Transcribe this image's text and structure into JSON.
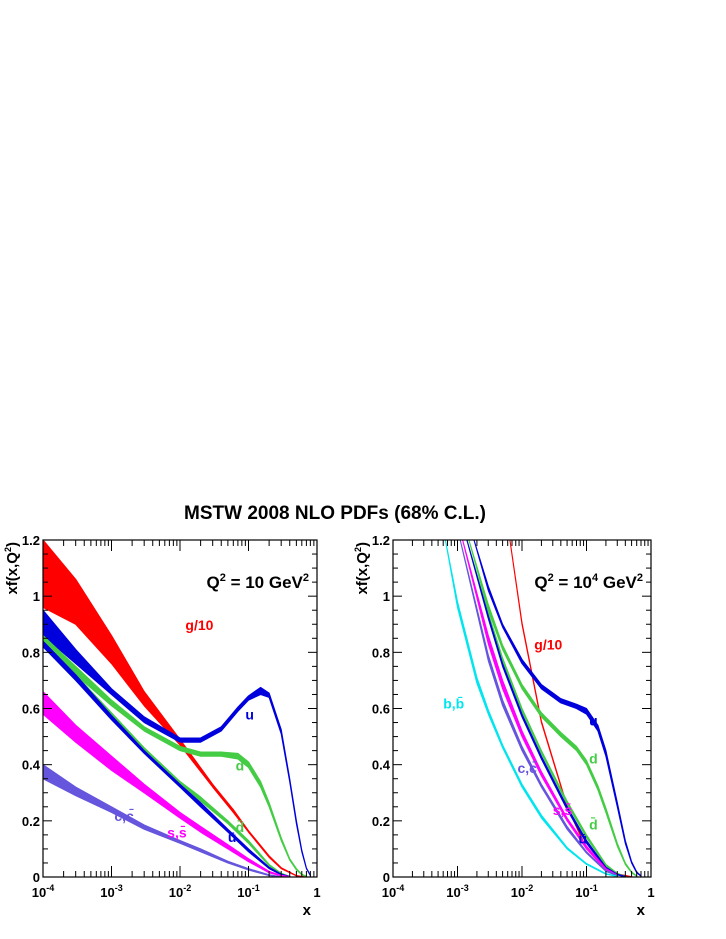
{
  "figure_title": "MSTW 2008 NLO PDFs (68% C.L.)",
  "chart_data": [
    {
      "type": "line",
      "panel": "left",
      "q2_label": "Q",
      "q2_exp": "2",
      "q2_value": " = 10 GeV",
      "q2_unit_exp": "2",
      "xlabel": "x",
      "ylabel": "xf(x,Q",
      "ylabel_exp": "2",
      "ylabel_close": ")",
      "xscale": "log",
      "xlim": [
        0.0001,
        1
      ],
      "ylim": [
        0,
        1.2
      ],
      "y_ticks": [
        "0",
        "0.2",
        "0.4",
        "0.6",
        "0.8",
        "1",
        "1.2"
      ],
      "x_ticks": [
        {
          "base": "10",
          "exp": "-4"
        },
        {
          "base": "10",
          "exp": "-3"
        },
        {
          "base": "10",
          "exp": "-2"
        },
        {
          "base": "10",
          "exp": "-1"
        },
        {
          "base": "1",
          "exp": ""
        }
      ],
      "series": [
        {
          "key": "g",
          "name": "g/10",
          "color": "#ff0000",
          "x": [
            0.0001,
            0.0003,
            0.001,
            0.003,
            0.01,
            0.03,
            0.06,
            0.1,
            0.2,
            0.3,
            0.5,
            0.7
          ],
          "lo": [
            0.96,
            0.9,
            0.76,
            0.61,
            0.47,
            0.32,
            0.23,
            0.16,
            0.07,
            0.03,
            0.004,
            0.0
          ],
          "hi": [
            1.2,
            1.06,
            0.86,
            0.66,
            0.49,
            0.33,
            0.24,
            0.165,
            0.075,
            0.033,
            0.005,
            0.0
          ]
        },
        {
          "key": "u",
          "name": "u",
          "color": "#0000dd",
          "x": [
            0.0001,
            0.0003,
            0.001,
            0.003,
            0.01,
            0.02,
            0.04,
            0.07,
            0.1,
            0.15,
            0.2,
            0.3,
            0.4,
            0.5,
            0.6,
            0.7,
            0.8
          ],
          "lo": [
            0.86,
            0.76,
            0.65,
            0.55,
            0.48,
            0.48,
            0.52,
            0.59,
            0.63,
            0.65,
            0.64,
            0.51,
            0.34,
            0.19,
            0.09,
            0.03,
            0.005
          ],
          "hi": [
            0.95,
            0.81,
            0.67,
            0.57,
            0.495,
            0.495,
            0.535,
            0.605,
            0.645,
            0.675,
            0.655,
            0.525,
            0.35,
            0.2,
            0.095,
            0.032,
            0.006
          ]
        },
        {
          "key": "d",
          "name": "d",
          "color": "#44cc44",
          "x": [
            0.0001,
            0.0003,
            0.001,
            0.003,
            0.01,
            0.02,
            0.04,
            0.07,
            0.1,
            0.15,
            0.2,
            0.3,
            0.4,
            0.5,
            0.6,
            0.7
          ],
          "lo": [
            0.82,
            0.72,
            0.61,
            0.52,
            0.45,
            0.43,
            0.43,
            0.42,
            0.39,
            0.32,
            0.25,
            0.13,
            0.06,
            0.025,
            0.008,
            0.002
          ],
          "hi": [
            0.86,
            0.75,
            0.63,
            0.535,
            0.465,
            0.445,
            0.445,
            0.44,
            0.41,
            0.34,
            0.265,
            0.14,
            0.065,
            0.03,
            0.01,
            0.003
          ]
        },
        {
          "key": "dbar",
          "name": "d̄",
          "color": "#44cc44",
          "x": [
            0.0001,
            0.0003,
            0.001,
            0.003,
            0.01,
            0.02,
            0.05,
            0.1,
            0.2,
            0.3,
            0.4
          ],
          "lo": [
            0.82,
            0.7,
            0.57,
            0.45,
            0.33,
            0.27,
            0.19,
            0.12,
            0.04,
            0.01,
            0.0
          ],
          "hi": [
            0.84,
            0.72,
            0.585,
            0.46,
            0.34,
            0.285,
            0.2,
            0.13,
            0.045,
            0.013,
            0.002
          ]
        },
        {
          "key": "ubar",
          "name": "ū",
          "color": "#0000dd",
          "x": [
            0.0001,
            0.0003,
            0.001,
            0.003,
            0.01,
            0.02,
            0.05,
            0.1,
            0.2,
            0.3,
            0.4
          ],
          "lo": [
            0.82,
            0.7,
            0.56,
            0.44,
            0.32,
            0.25,
            0.16,
            0.09,
            0.03,
            0.008,
            0.0
          ],
          "hi": [
            0.84,
            0.72,
            0.575,
            0.45,
            0.33,
            0.265,
            0.17,
            0.1,
            0.035,
            0.01,
            0.002
          ]
        },
        {
          "key": "s",
          "name": "s,s̄",
          "color": "#ff00ff",
          "x": [
            0.0001,
            0.0003,
            0.001,
            0.003,
            0.01,
            0.02,
            0.05,
            0.1,
            0.2,
            0.3,
            0.4
          ],
          "lo": [
            0.58,
            0.48,
            0.38,
            0.3,
            0.21,
            0.16,
            0.1,
            0.055,
            0.015,
            0.004,
            0.0
          ],
          "hi": [
            0.66,
            0.54,
            0.43,
            0.33,
            0.23,
            0.18,
            0.115,
            0.065,
            0.02,
            0.006,
            0.001
          ]
        },
        {
          "key": "c",
          "name": "c,c̄",
          "color": "#6655dd",
          "x": [
            0.0001,
            0.0003,
            0.001,
            0.003,
            0.01,
            0.02,
            0.05,
            0.1,
            0.2,
            0.3
          ],
          "lo": [
            0.35,
            0.29,
            0.23,
            0.17,
            0.12,
            0.09,
            0.05,
            0.025,
            0.005,
            0.0
          ],
          "hi": [
            0.4,
            0.32,
            0.25,
            0.185,
            0.13,
            0.1,
            0.056,
            0.03,
            0.008,
            0.001
          ]
        }
      ]
    },
    {
      "type": "line",
      "panel": "right",
      "q2_label": "Q",
      "q2_exp": "2",
      "q2_value": " = 10",
      "q2_pow": "4",
      "q2_unit": " GeV",
      "q2_unit_exp": "2",
      "xlabel": "x",
      "ylabel": "xf(x,Q",
      "ylabel_exp": "2",
      "ylabel_close": ")",
      "xscale": "log",
      "xlim": [
        0.0001,
        1
      ],
      "ylim": [
        0,
        1.2
      ],
      "y_ticks": [
        "0",
        "0.2",
        "0.4",
        "0.6",
        "0.8",
        "1",
        "1.2"
      ],
      "x_ticks": [
        {
          "base": "10",
          "exp": "-4"
        },
        {
          "base": "10",
          "exp": "-3"
        },
        {
          "base": "10",
          "exp": "-2"
        },
        {
          "base": "10",
          "exp": "-1"
        },
        {
          "base": "1",
          "exp": ""
        }
      ],
      "series": [
        {
          "key": "g",
          "name": "g/10",
          "color": "#ff0000",
          "x": [
            0.0065,
            0.01,
            0.02,
            0.05,
            0.1,
            0.2,
            0.3,
            0.5
          ],
          "lo": [
            1.2,
            0.9,
            0.55,
            0.25,
            0.1,
            0.03,
            0.01,
            0.0
          ],
          "hi": [
            1.2,
            0.905,
            0.555,
            0.253,
            0.102,
            0.031,
            0.011,
            0.001
          ]
        },
        {
          "key": "u",
          "name": "u",
          "color": "#0000dd",
          "x": [
            0.0018,
            0.003,
            0.005,
            0.01,
            0.02,
            0.04,
            0.07,
            0.1,
            0.15,
            0.2,
            0.3,
            0.4,
            0.5,
            0.6,
            0.7
          ],
          "lo": [
            1.2,
            1.02,
            0.89,
            0.76,
            0.67,
            0.62,
            0.6,
            0.58,
            0.52,
            0.43,
            0.25,
            0.12,
            0.05,
            0.015,
            0.003
          ],
          "hi": [
            1.2,
            1.035,
            0.9,
            0.775,
            0.685,
            0.635,
            0.615,
            0.6,
            0.54,
            0.45,
            0.265,
            0.13,
            0.055,
            0.018,
            0.004
          ]
        },
        {
          "key": "d",
          "name": "d",
          "color": "#44cc44",
          "x": [
            0.0015,
            0.003,
            0.005,
            0.01,
            0.02,
            0.04,
            0.07,
            0.1,
            0.15,
            0.2,
            0.3,
            0.4,
            0.5,
            0.6
          ],
          "lo": [
            1.2,
            0.95,
            0.81,
            0.67,
            0.57,
            0.5,
            0.45,
            0.4,
            0.31,
            0.23,
            0.11,
            0.045,
            0.015,
            0.003
          ],
          "hi": [
            1.2,
            0.97,
            0.825,
            0.685,
            0.585,
            0.515,
            0.465,
            0.415,
            0.325,
            0.245,
            0.12,
            0.05,
            0.018,
            0.004
          ]
        },
        {
          "key": "dbar",
          "name": "d̄",
          "color": "#44cc44",
          "x": [
            0.0014,
            0.003,
            0.005,
            0.01,
            0.02,
            0.05,
            0.1,
            0.2,
            0.3,
            0.4
          ],
          "lo": [
            1.2,
            0.93,
            0.77,
            0.59,
            0.44,
            0.26,
            0.14,
            0.04,
            0.01,
            0.0
          ],
          "hi": [
            1.2,
            0.94,
            0.78,
            0.6,
            0.45,
            0.27,
            0.15,
            0.045,
            0.013,
            0.002
          ]
        },
        {
          "key": "ubar",
          "name": "ū",
          "color": "#0000dd",
          "x": [
            0.0014,
            0.003,
            0.005,
            0.01,
            0.02,
            0.05,
            0.1,
            0.2,
            0.3,
            0.4
          ],
          "lo": [
            1.2,
            0.92,
            0.75,
            0.57,
            0.42,
            0.24,
            0.12,
            0.03,
            0.008,
            0.0
          ],
          "hi": [
            1.2,
            0.93,
            0.76,
            0.58,
            0.43,
            0.25,
            0.13,
            0.035,
            0.01,
            0.002
          ]
        },
        {
          "key": "s",
          "name": "s,s̄",
          "color": "#ff00ff",
          "x": [
            0.0012,
            0.003,
            0.005,
            0.01,
            0.02,
            0.05,
            0.1,
            0.2,
            0.3
          ],
          "lo": [
            1.2,
            0.83,
            0.67,
            0.5,
            0.36,
            0.2,
            0.1,
            0.025,
            0.005
          ],
          "hi": [
            1.2,
            0.86,
            0.7,
            0.52,
            0.375,
            0.21,
            0.11,
            0.03,
            0.007
          ]
        },
        {
          "key": "c",
          "name": "c,c̄",
          "color": "#6655dd",
          "x": [
            0.0011,
            0.003,
            0.005,
            0.01,
            0.02,
            0.05,
            0.1,
            0.2,
            0.3
          ],
          "lo": [
            1.2,
            0.77,
            0.61,
            0.45,
            0.32,
            0.17,
            0.085,
            0.02,
            0.004
          ],
          "hi": [
            1.2,
            0.79,
            0.63,
            0.465,
            0.33,
            0.18,
            0.09,
            0.023,
            0.006
          ]
        },
        {
          "key": "b",
          "name": "b,b̄",
          "color": "#00e5ee",
          "x": [
            0.00065,
            0.001,
            0.002,
            0.003,
            0.005,
            0.01,
            0.02,
            0.05,
            0.1,
            0.2,
            0.3
          ],
          "lo": [
            1.2,
            0.96,
            0.69,
            0.58,
            0.46,
            0.32,
            0.21,
            0.1,
            0.045,
            0.01,
            0.002
          ],
          "hi": [
            1.2,
            0.98,
            0.71,
            0.595,
            0.47,
            0.33,
            0.22,
            0.105,
            0.048,
            0.012,
            0.003
          ]
        }
      ]
    }
  ]
}
